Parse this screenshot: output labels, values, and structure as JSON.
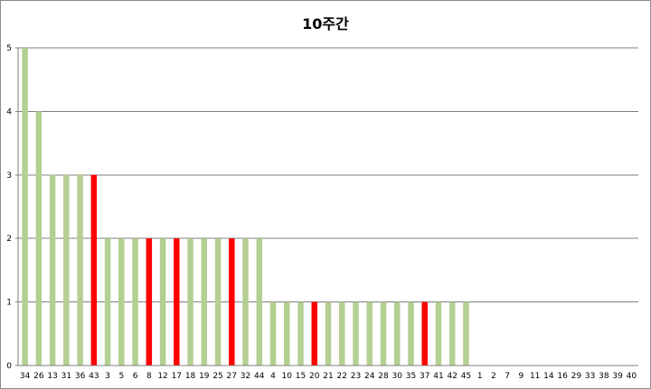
{
  "chart_data": {
    "type": "bar",
    "title": "10주간",
    "xlabel": "",
    "ylabel": "",
    "ylim": [
      0,
      5
    ],
    "yticks": [
      "0",
      "1",
      "2",
      "3",
      "4",
      "5"
    ],
    "grid": true,
    "legend": "none",
    "categories": [
      "34",
      "26",
      "13",
      "31",
      "36",
      "43",
      "3",
      "5",
      "6",
      "8",
      "12",
      "17",
      "18",
      "19",
      "25",
      "27",
      "32",
      "44",
      "4",
      "10",
      "15",
      "20",
      "21",
      "22",
      "23",
      "24",
      "28",
      "30",
      "35",
      "37",
      "41",
      "42",
      "45",
      "1",
      "2",
      "7",
      "9",
      "11",
      "14",
      "16",
      "29",
      "33",
      "38",
      "39",
      "40"
    ],
    "values": [
      5,
      4,
      3,
      3,
      3,
      3,
      2,
      2,
      2,
      2,
      2,
      2,
      2,
      2,
      2,
      2,
      2,
      2,
      1,
      1,
      1,
      1,
      1,
      1,
      1,
      1,
      1,
      1,
      1,
      1,
      1,
      1,
      1,
      0,
      0,
      0,
      0,
      0,
      0,
      0,
      0,
      0,
      0,
      0,
      0
    ],
    "highlighted": [
      "43",
      "8",
      "17",
      "27",
      "20",
      "37"
    ],
    "colors": {
      "default": "#b4cf92",
      "highlight": "#ff0000",
      "grid": "#808080",
      "axis": "#808080"
    }
  }
}
